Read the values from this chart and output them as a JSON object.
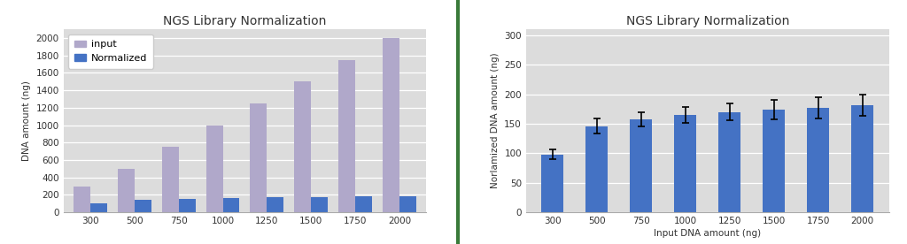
{
  "title": "NGS Library Normalization",
  "left": {
    "categories": [
      "300",
      "500",
      "750",
      "1000",
      "1250",
      "1500",
      "1750",
      "2000"
    ],
    "input_values": [
      300,
      500,
      750,
      1000,
      1250,
      1500,
      1750,
      2000
    ],
    "normalized_values": [
      100,
      140,
      150,
      165,
      170,
      170,
      180,
      185
    ],
    "input_color": "#b0a8ca",
    "normalized_color": "#4472c4",
    "ylabel": "DNA amount (ng)",
    "ylim": [
      0,
      2100
    ],
    "yticks": [
      0,
      200,
      400,
      600,
      800,
      1000,
      1200,
      1400,
      1600,
      1800,
      2000
    ],
    "legend_input": "input",
    "legend_normalized": "Normalized"
  },
  "right": {
    "categories": [
      "300",
      "500",
      "750",
      "1000",
      "1250",
      "1500",
      "1750",
      "2000"
    ],
    "values": [
      98,
      146,
      157,
      165,
      170,
      174,
      177,
      181
    ],
    "errors": [
      8,
      13,
      12,
      13,
      14,
      16,
      18,
      18
    ],
    "bar_color": "#4472c4",
    "ylabel": "Norlamized DNA amount (ng)",
    "xlabel": "Input DNA amount (ng)",
    "ylim": [
      0,
      310
    ],
    "yticks": [
      0,
      50,
      100,
      150,
      200,
      250,
      300
    ]
  },
  "fig_bg_color": "#ffffff",
  "plot_bg_color": "#dcdcdc",
  "divider_color": "#3a7a3a",
  "title_fontsize": 10,
  "axis_label_fontsize": 7.5,
  "tick_fontsize": 7.5,
  "legend_fontsize": 8
}
